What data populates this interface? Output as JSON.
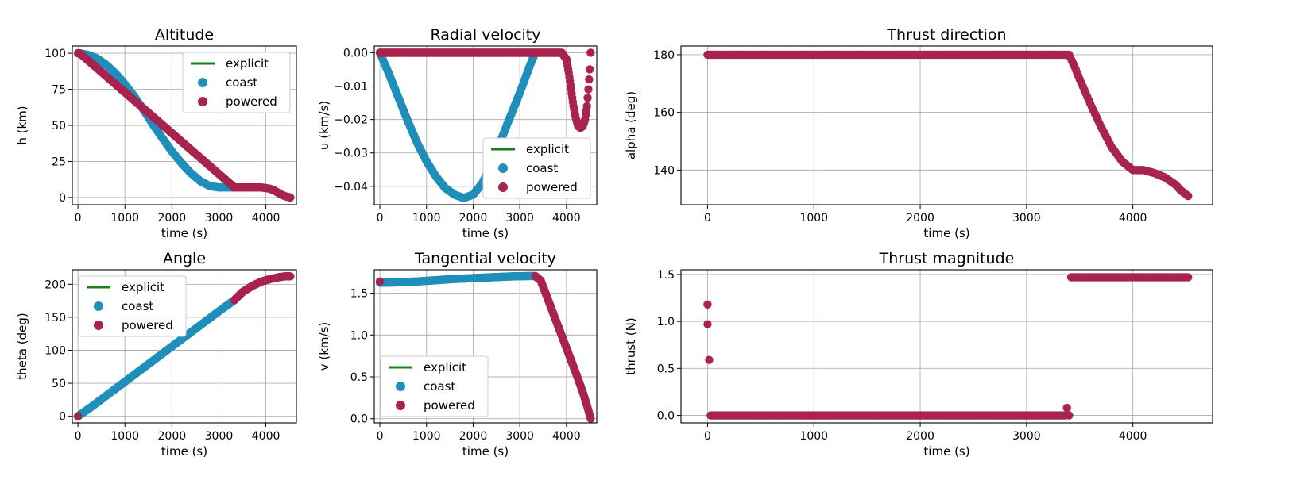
{
  "figure": {
    "type": "scatter",
    "panels": 6
  },
  "colors": {
    "explicit": "#1a7f1a",
    "coast": "#1f8fba",
    "powered": "#a8234f",
    "grid": "#b0b0b0"
  },
  "legend_labels": [
    "explicit",
    "coast",
    "powered"
  ],
  "chart_data": [
    {
      "id": "altitude",
      "type": "scatter",
      "title": "Altitude",
      "xlabel": "time (s)",
      "ylabel": "h (km)",
      "xlim": [
        -120,
        4650
      ],
      "ylim": [
        -5,
        105
      ],
      "xticks": [
        0,
        1000,
        2000,
        3000,
        4000
      ],
      "yticks": [
        0,
        25,
        50,
        75,
        100
      ],
      "legend": "top-right",
      "series": [
        {
          "name": "coast",
          "x": [
            0,
            200,
            400,
            600,
            800,
            1000,
            1200,
            1400,
            1600,
            1800,
            2000,
            2200,
            2400,
            2600,
            2800,
            3000,
            3200,
            3330
          ],
          "y": [
            100,
            99,
            96.5,
            92,
            86,
            78.5,
            70,
            60.5,
            50.5,
            41,
            32,
            24,
            17,
            11.5,
            8,
            7,
            7,
            7
          ]
        },
        {
          "name": "powered",
          "x": [
            0,
            40,
            3330,
            3500,
            3700,
            3900,
            4000,
            4100,
            4200,
            4300,
            4400,
            4520
          ],
          "y": [
            100,
            100,
            7,
            7,
            7,
            7,
            6.5,
            6,
            4.5,
            2.5,
            1,
            0
          ]
        }
      ]
    },
    {
      "id": "radial_velocity",
      "type": "scatter",
      "title": "Radial velocity",
      "xlabel": "time (s)",
      "ylabel": "u (km/s)",
      "xlim": [
        -120,
        4650
      ],
      "ylim": [
        -0.0455,
        0.002
      ],
      "xticks": [
        0,
        1000,
        2000,
        3000,
        4000
      ],
      "yticks": [
        0.0,
        -0.01,
        -0.02,
        -0.03,
        -0.04
      ],
      "ytick_labels": [
        "0.00",
        "−0.01",
        "−0.02",
        "−0.03",
        "−0.04"
      ],
      "legend": "bottom-right",
      "series": [
        {
          "name": "coast",
          "x": [
            0,
            200,
            400,
            600,
            800,
            1000,
            1200,
            1400,
            1600,
            1800,
            2000,
            2200,
            2400,
            2600,
            2800,
            3000,
            3200,
            3330
          ],
          "y": [
            0,
            -0.0065,
            -0.0135,
            -0.0205,
            -0.027,
            -0.0325,
            -0.037,
            -0.0405,
            -0.0425,
            -0.0435,
            -0.0425,
            -0.039,
            -0.033,
            -0.026,
            -0.019,
            -0.012,
            -0.0045,
            0
          ]
        },
        {
          "name": "powered",
          "x": [
            0,
            3330,
            3500,
            3700,
            3900,
            4000,
            4050,
            4100,
            4150,
            4200,
            4250,
            4300,
            4350,
            4400,
            4440,
            4470,
            4500,
            4520
          ],
          "y": [
            0,
            0,
            0,
            0,
            0,
            -0.002,
            -0.006,
            -0.011,
            -0.016,
            -0.0195,
            -0.022,
            -0.0225,
            -0.022,
            -0.02,
            -0.016,
            -0.011,
            -0.005,
            0
          ]
        }
      ]
    },
    {
      "id": "thrust_direction",
      "type": "scatter",
      "title": "Thrust direction",
      "xlabel": "time (s)",
      "ylabel": "alpha (deg)",
      "xlim": [
        -250,
        4750
      ],
      "ylim": [
        128,
        183
      ],
      "xticks": [
        0,
        1000,
        2000,
        3000,
        4000
      ],
      "yticks": [
        140,
        160,
        180
      ],
      "series": [
        {
          "name": "powered",
          "x": [
            0,
            3350,
            3400,
            3450,
            3500,
            3600,
            3700,
            3800,
            3900,
            4000,
            4100,
            4200,
            4300,
            4400,
            4450,
            4520
          ],
          "y": [
            180,
            180,
            180,
            176,
            171.5,
            163,
            155,
            148,
            143,
            140,
            140,
            139,
            137.5,
            135,
            133,
            131
          ]
        }
      ]
    },
    {
      "id": "angle",
      "type": "scatter",
      "title": "Angle",
      "xlabel": "time (s)",
      "ylabel": "theta (deg)",
      "xlim": [
        -120,
        4650
      ],
      "ylim": [
        -10,
        222
      ],
      "xticks": [
        0,
        1000,
        2000,
        3000,
        4000
      ],
      "yticks": [
        0,
        50,
        100,
        150,
        200
      ],
      "legend": "top-left",
      "series": [
        {
          "name": "coast",
          "x": [
            0,
            300,
            600,
            900,
            1200,
            1500,
            1800,
            2100,
            2400,
            2700,
            3000,
            3330
          ],
          "y": [
            0,
            15,
            31,
            47,
            63,
            79,
            95,
            111,
            127,
            143,
            159,
            176
          ]
        },
        {
          "name": "powered",
          "x": [
            0,
            3330,
            3500,
            3700,
            3900,
            4100,
            4300,
            4400,
            4520
          ],
          "y": [
            0,
            176,
            188,
            197,
            204,
            208,
            211,
            212,
            212
          ]
        }
      ]
    },
    {
      "id": "tangential_velocity",
      "type": "scatter",
      "title": "Tangential velocity",
      "xlabel": "time (s)",
      "ylabel": "v (km/s)",
      "xlim": [
        -120,
        4650
      ],
      "ylim": [
        -0.05,
        1.78
      ],
      "xticks": [
        0,
        1000,
        2000,
        3000,
        4000
      ],
      "yticks": [
        0.0,
        0.5,
        1.0,
        1.5
      ],
      "ytick_labels": [
        "0.0",
        "0.5",
        "1.0",
        "1.5"
      ],
      "legend": "bottom-left",
      "series": [
        {
          "name": "coast",
          "x": [
            0,
            400,
            800,
            1200,
            1600,
            2000,
            2400,
            2800,
            3200,
            3330
          ],
          "y": [
            1.625,
            1.63,
            1.64,
            1.655,
            1.67,
            1.68,
            1.69,
            1.7,
            1.705,
            1.705
          ]
        },
        {
          "name": "powered",
          "x": [
            0,
            3330,
            3450,
            3600,
            3750,
            3900,
            4050,
            4200,
            4350,
            4450,
            4520
          ],
          "y": [
            1.64,
            1.705,
            1.65,
            1.43,
            1.21,
            0.99,
            0.77,
            0.55,
            0.32,
            0.14,
            0.0
          ]
        }
      ]
    },
    {
      "id": "thrust_magnitude",
      "type": "scatter",
      "title": "Thrust magnitude",
      "xlabel": "time (s)",
      "ylabel": "thrust (N)",
      "xlim": [
        -250,
        4750
      ],
      "ylim": [
        -0.08,
        1.55
      ],
      "xticks": [
        0,
        1000,
        2000,
        3000,
        4000
      ],
      "yticks": [
        0.0,
        0.5,
        1.0,
        1.5
      ],
      "ytick_labels": [
        "0.0",
        "0.5",
        "1.0",
        "1.5"
      ],
      "series": [
        {
          "name": "powered",
          "x": [
            0,
            0,
            30,
            3360,
            3380,
            3400,
            3420,
            4520
          ],
          "y": [
            0.97,
            1.18,
            0.0,
            0.0,
            0.08,
            0.0,
            1.47,
            1.47
          ]
        }
      ]
    }
  ]
}
